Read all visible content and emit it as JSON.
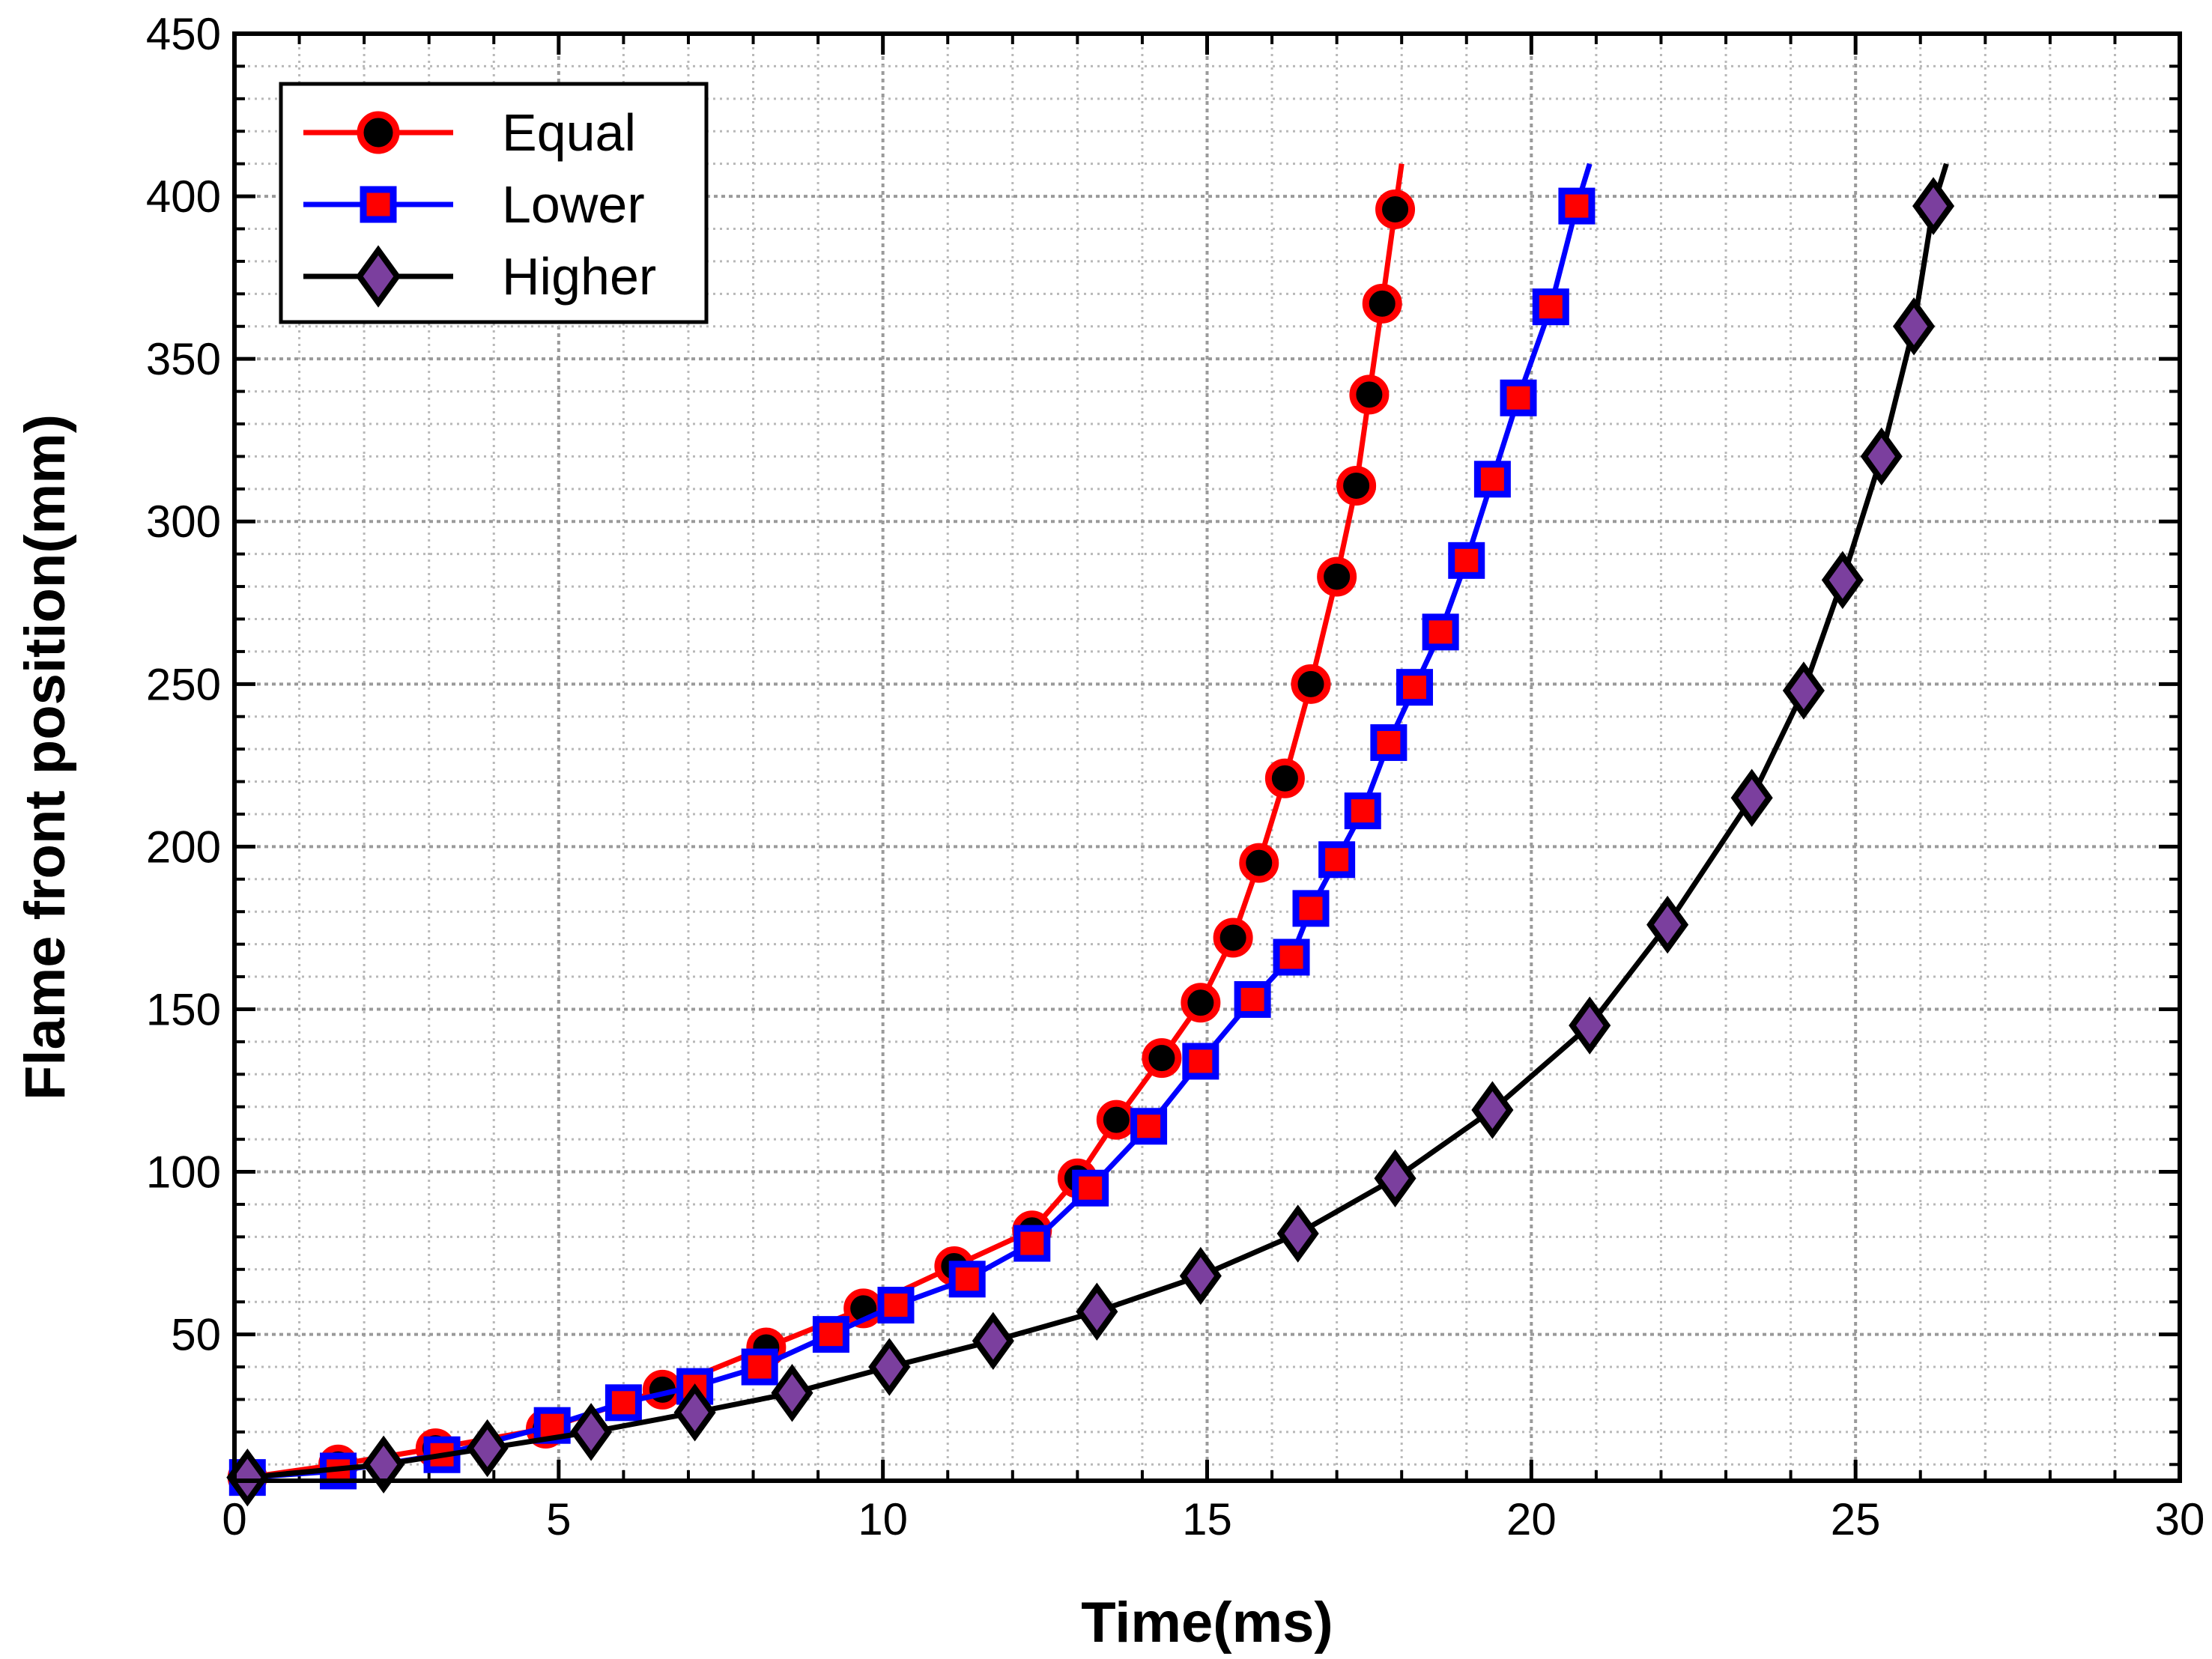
{
  "chart_data": {
    "type": "line",
    "xlabel": "Time(ms)",
    "ylabel": "Flame front position(mm)",
    "xlim": [
      0,
      30
    ],
    "ylim": [
      5,
      450
    ],
    "x_ticks": [
      0,
      5,
      10,
      15,
      20,
      25,
      30
    ],
    "x_tick_labels": [
      "0",
      "5",
      "10",
      "15",
      "20",
      "25",
      "30"
    ],
    "y_ticks": [
      50,
      100,
      150,
      200,
      250,
      300,
      350,
      400,
      450
    ],
    "y_tick_labels": [
      "50",
      "100",
      "150",
      "200",
      "250",
      "300",
      "350",
      "400",
      "450"
    ],
    "grid": true,
    "minor_grid": true,
    "legend_position": "top-left",
    "series": [
      {
        "name": "Equal",
        "line_color": "#ff0000",
        "marker": "circle",
        "marker_fill": "#000000",
        "marker_edge": "#ff0000",
        "x": [
          0.2,
          1.6,
          3.1,
          4.8,
          6.6,
          8.2,
          9.7,
          11.1,
          12.3,
          13.0,
          13.6,
          14.3,
          14.9,
          15.4,
          15.8,
          16.2,
          16.6,
          17.0,
          17.3,
          17.5,
          17.7,
          17.9
        ],
        "y": [
          6,
          10,
          15,
          21,
          33,
          46,
          58,
          71,
          82,
          98,
          116,
          135,
          152,
          172,
          195,
          221,
          250,
          283,
          311,
          339,
          367,
          396
        ],
        "line_end": [
          18.0,
          410
        ]
      },
      {
        "name": "Lower",
        "line_color": "#0000ff",
        "marker": "square",
        "marker_fill": "#ff0000",
        "marker_edge": "#0000ff",
        "x": [
          0.2,
          1.6,
          3.2,
          4.9,
          6.0,
          7.1,
          8.1,
          9.2,
          10.2,
          11.3,
          12.3,
          13.2,
          14.1,
          14.9,
          15.7,
          16.3,
          16.6,
          17.0,
          17.4,
          17.8,
          18.2,
          18.6,
          19.0,
          19.4,
          19.8,
          20.3,
          20.7
        ],
        "y": [
          6,
          8,
          13,
          22,
          29,
          34,
          40,
          50,
          59,
          67,
          78,
          95,
          114,
          134,
          153,
          166,
          181,
          196,
          211,
          232,
          249,
          266,
          288,
          313,
          338,
          366,
          397
        ],
        "line_end": [
          20.9,
          410
        ]
      },
      {
        "name": "Higher",
        "line_color": "#000000",
        "marker": "diamond",
        "marker_fill": "#7b3f9e",
        "marker_edge": "#000000",
        "x": [
          0.2,
          2.3,
          3.9,
          5.5,
          7.1,
          8.6,
          10.1,
          11.7,
          13.3,
          14.9,
          16.4,
          17.9,
          19.4,
          20.9,
          22.1,
          23.4,
          24.2,
          24.8,
          25.4,
          25.9,
          26.2
        ],
        "y": [
          6,
          10,
          15,
          20,
          26,
          32,
          40,
          48,
          57,
          68,
          81,
          98,
          119,
          145,
          176,
          215,
          248,
          282,
          320,
          360,
          397
        ],
        "line_end": [
          26.4,
          410
        ]
      }
    ]
  }
}
